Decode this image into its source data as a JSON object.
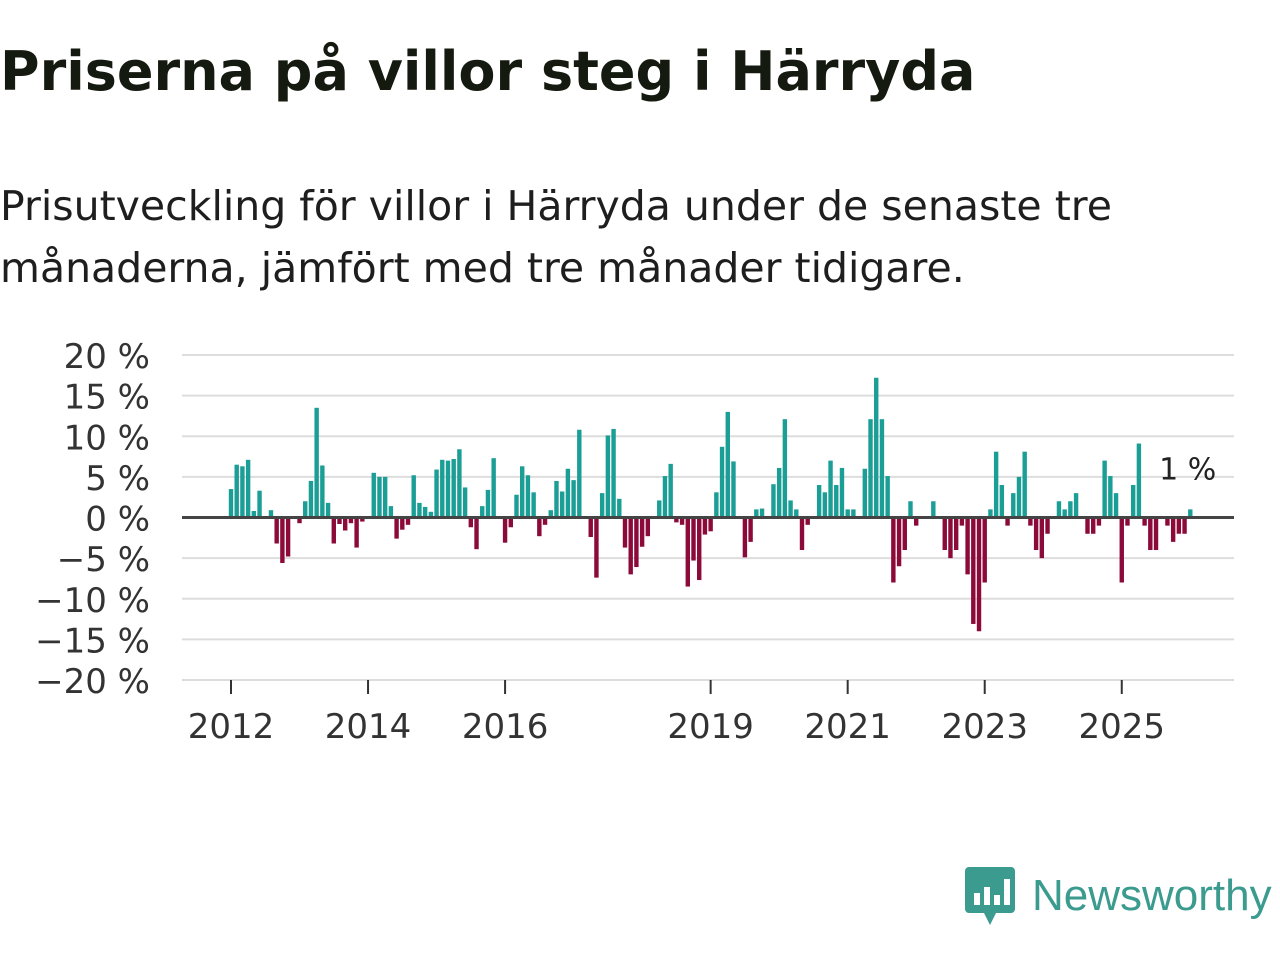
{
  "title": "Priserna på villor steg i Härryda",
  "subtitle": "Prisutveckling för villor i Härryda under de senaste tre månaderna, jämfört med tre månader tidigare.",
  "brand": {
    "name": "Newsworthy"
  },
  "colors": {
    "positive": "#1a9e96",
    "negative": "#8b0a3a",
    "grid": "#dddddd",
    "zero": "#444444",
    "brand": "#3a9b8e"
  },
  "chart_data": {
    "type": "bar",
    "title": "Priserna på villor steg i Härryda",
    "xlabel": "",
    "ylabel": "",
    "ylim": [
      -20,
      20
    ],
    "y_ticks": [
      20,
      15,
      10,
      5,
      0,
      -5,
      -10,
      -15,
      -20
    ],
    "y_tick_labels": [
      "20 %",
      "15 %",
      "10 %",
      "5 %",
      "0 %",
      "−5 %",
      "−10 %",
      "−15 %",
      "−20 %"
    ],
    "x_tick_labels": [
      {
        "label": "2012",
        "year": 2012
      },
      {
        "label": "2014",
        "year": 2014
      },
      {
        "label": "2016",
        "year": 2016
      },
      {
        "label": "2019",
        "year": 2019
      },
      {
        "label": "2021",
        "year": 2021
      },
      {
        "label": "2023",
        "year": 2023
      },
      {
        "label": "2025",
        "year": 2025
      }
    ],
    "start": {
      "year": 2012,
      "month": 1
    },
    "grid": true,
    "last_value_label": "1 %",
    "values": [
      3.5,
      6.5,
      6.3,
      7.1,
      0.8,
      3.3,
      0.0,
      0.9,
      -3.2,
      -5.6,
      -4.8,
      0.0,
      -0.7,
      2.0,
      4.5,
      13.5,
      6.4,
      1.8,
      -3.2,
      -0.8,
      -1.6,
      -0.7,
      -3.7,
      -0.5,
      0.0,
      5.5,
      5.0,
      5.0,
      1.4,
      -2.6,
      -1.5,
      -0.9,
      5.2,
      1.8,
      1.3,
      0.7,
      5.9,
      7.1,
      7.0,
      7.2,
      8.4,
      3.7,
      -1.2,
      -3.9,
      1.4,
      3.4,
      7.3,
      0.0,
      -3.1,
      -1.2,
      2.8,
      6.3,
      5.2,
      3.1,
      -2.3,
      -0.9,
      0.9,
      4.5,
      3.2,
      6.0,
      4.6,
      10.8,
      0.0,
      -2.4,
      -7.4,
      3.0,
      10.1,
      10.9,
      2.3,
      -3.7,
      -7.0,
      -6.1,
      -3.6,
      -2.3,
      0.0,
      2.1,
      5.1,
      6.6,
      -0.6,
      -0.9,
      -8.5,
      -5.3,
      -7.7,
      -2.1,
      -1.7,
      3.1,
      8.7,
      13.0,
      6.9,
      0.0,
      -4.9,
      -3.0,
      1.0,
      1.1,
      0.0,
      4.1,
      6.1,
      12.1,
      2.1,
      1.0,
      -4.0,
      -0.9,
      0.0,
      4.0,
      3.1,
      7.0,
      4.0,
      6.1,
      1.0,
      1.0,
      0.0,
      6.0,
      12.1,
      17.2,
      12.1,
      5.1,
      -8.0,
      -6.0,
      -4.0,
      2.0,
      -1.0,
      0.0,
      0.0,
      2.0,
      0.0,
      -4.0,
      -5.0,
      -4.0,
      -1.0,
      -7.0,
      -13.1,
      -14.0,
      -8.0,
      1.0,
      8.1,
      4.0,
      -1.0,
      3.0,
      5.0,
      8.1,
      -1.0,
      -4.0,
      -5.0,
      -2.0,
      0.0,
      2.0,
      1.0,
      2.0,
      3.0,
      0.0,
      -2.0,
      -2.0,
      -1.0,
      7.0,
      5.1,
      3.0,
      -8.0,
      -1.0,
      4.0,
      9.1,
      -1.0,
      -4.0,
      -4.0,
      0.0,
      -1.0,
      -3.0,
      -2.0,
      -2.0,
      1.0
    ]
  }
}
